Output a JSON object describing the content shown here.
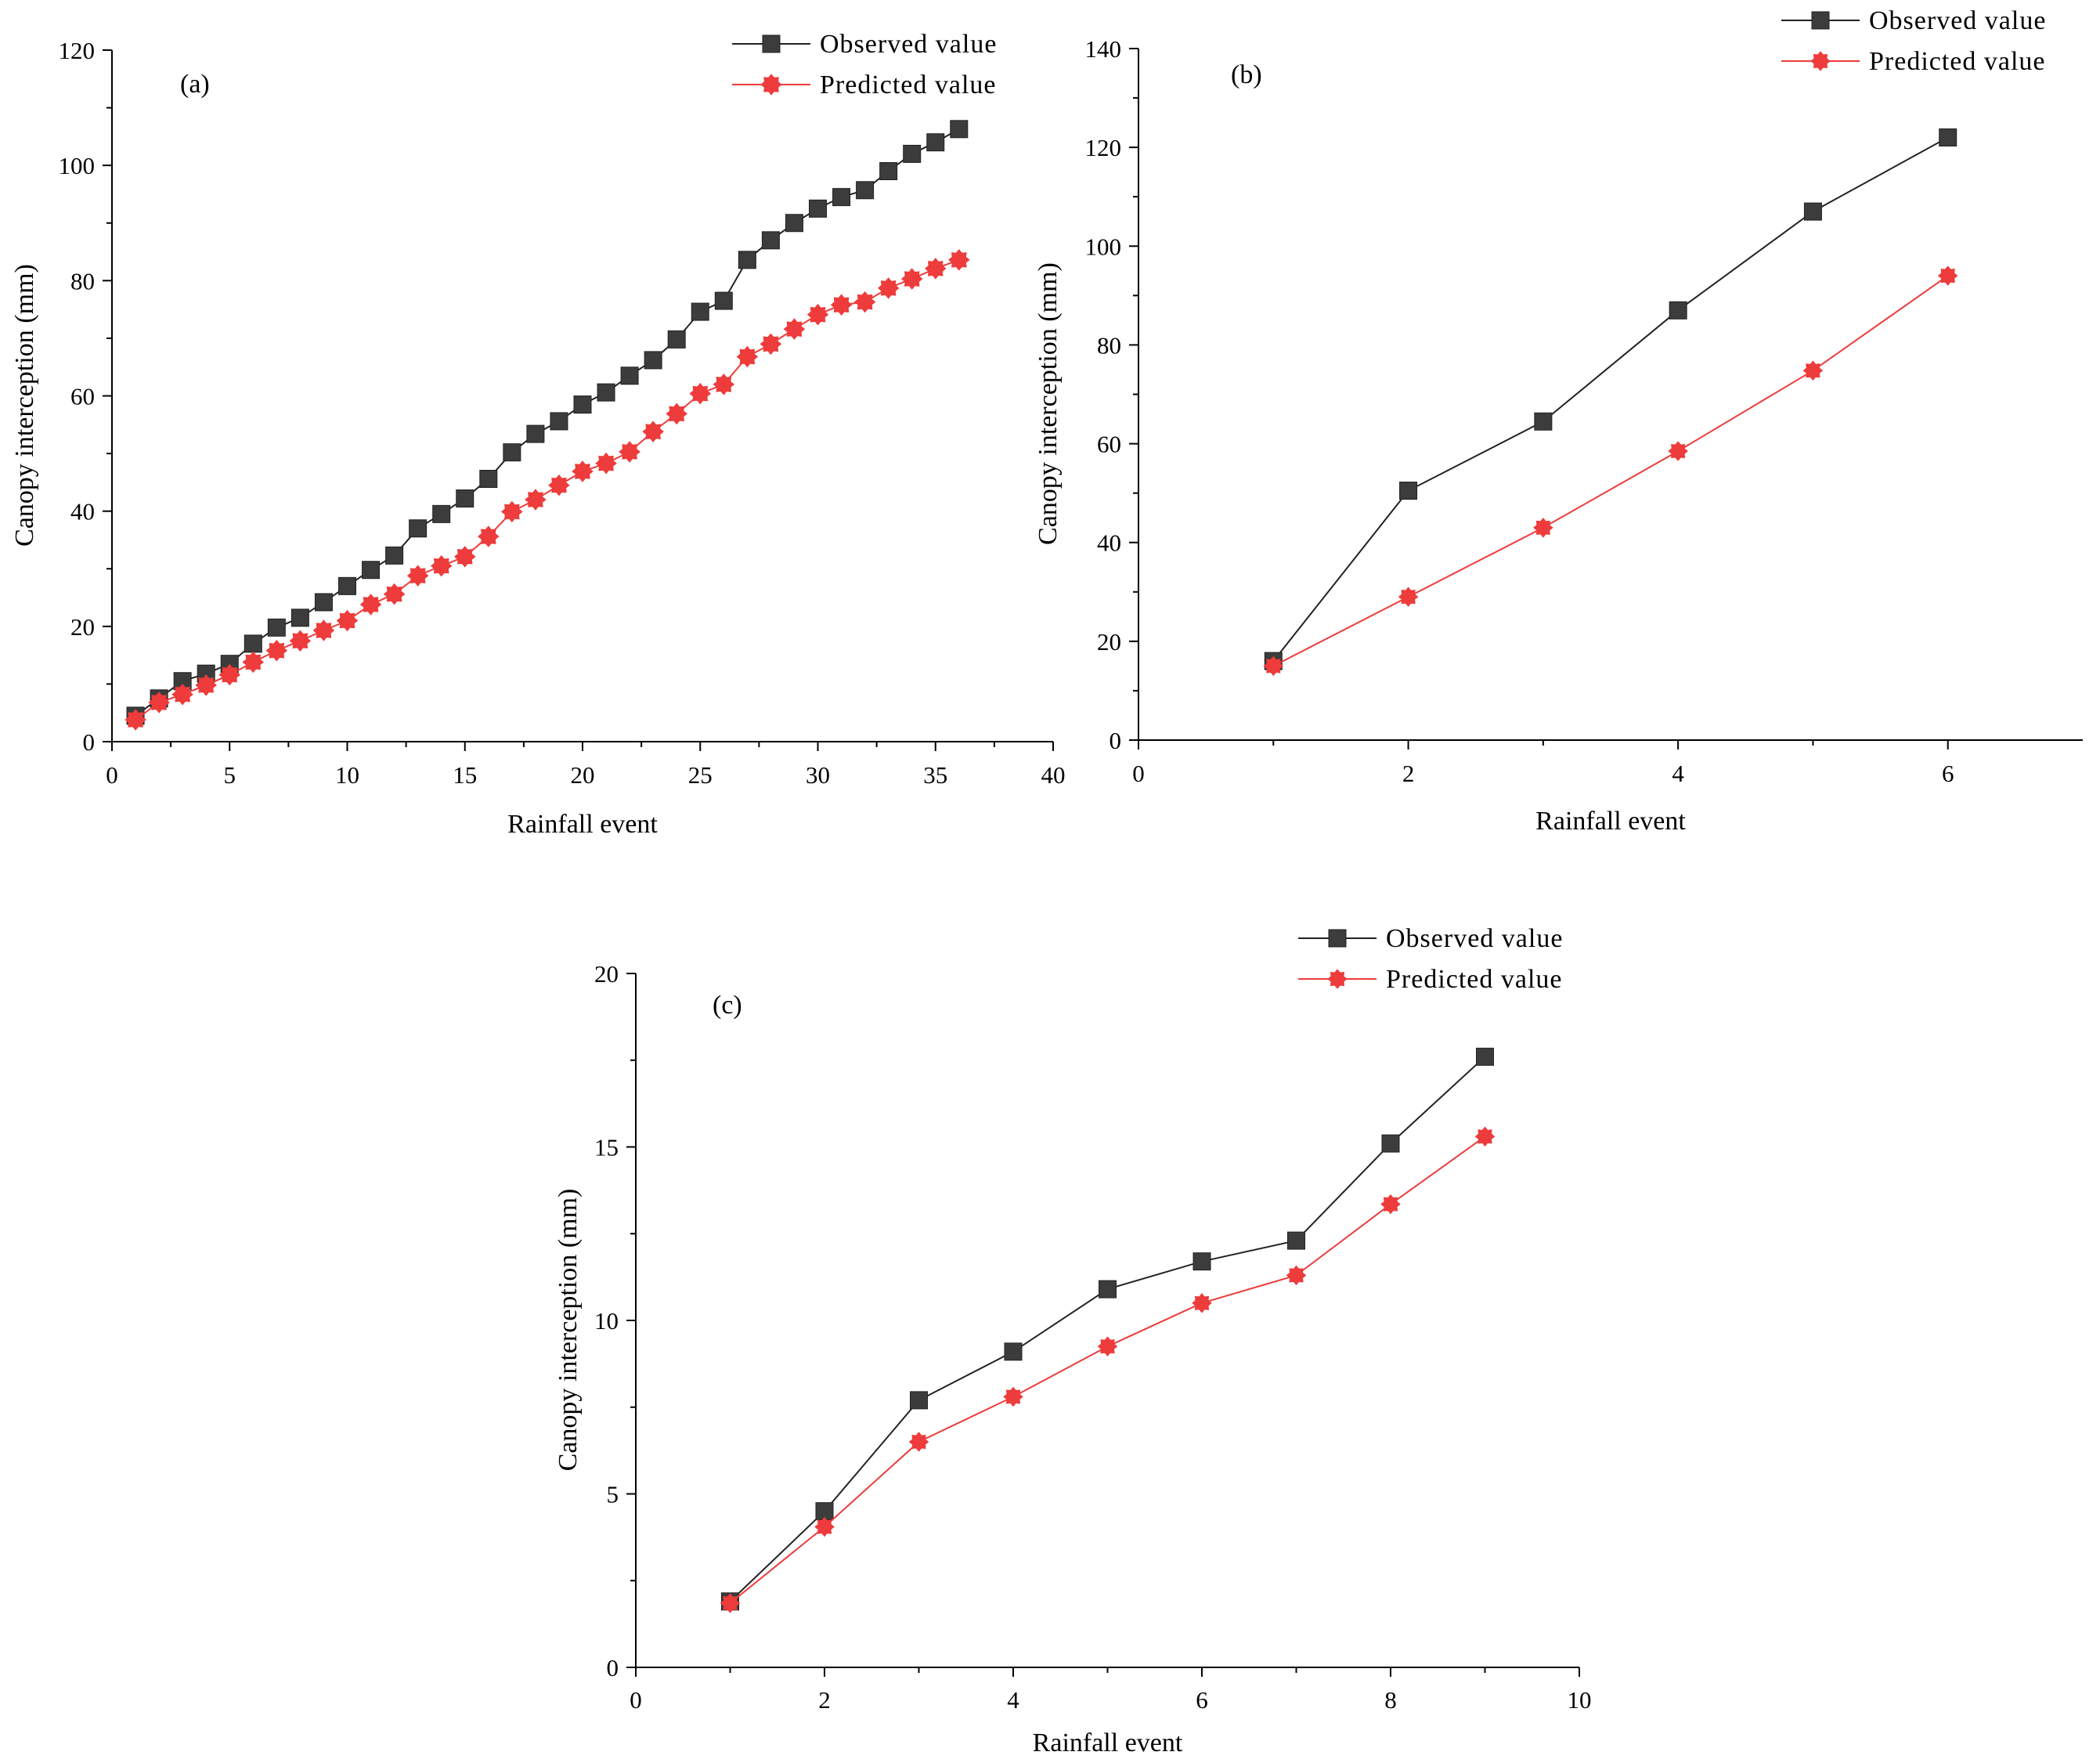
{
  "colors": {
    "observed": "#3c3c3c",
    "observed_line": "#222222",
    "predicted": "#ee3b3b",
    "axis": "#000000"
  },
  "chart_data": [
    {
      "type": "line",
      "panel_label": "(a)",
      "xlabel": "Rainfall event",
      "ylabel": "Canopy interception (mm)",
      "xlim": [
        0,
        40
      ],
      "ylim": [
        0,
        120
      ],
      "xticks": [
        0,
        5,
        10,
        15,
        20,
        25,
        30,
        35,
        40
      ],
      "yticks": [
        0,
        20,
        40,
        60,
        80,
        100,
        120
      ],
      "x": [
        1,
        2,
        3,
        4,
        5,
        6,
        7,
        8,
        9,
        10,
        11,
        12,
        13,
        14,
        15,
        16,
        17,
        18,
        19,
        20,
        21,
        22,
        23,
        24,
        25,
        26,
        27,
        28,
        29,
        30,
        31,
        32,
        33,
        34,
        35,
        36
      ],
      "series": [
        {
          "name": "Observed value",
          "marker": "square",
          "values": [
            4.5,
            7.5,
            10.5,
            11.8,
            13.5,
            17,
            19.8,
            21.5,
            24.2,
            27,
            29.8,
            32.3,
            37,
            39.5,
            42.2,
            45.6,
            50.2,
            53.4,
            55.6,
            58.5,
            60.6,
            63.5,
            66.2,
            69.8,
            74.6,
            76.5,
            83.6,
            87,
            90,
            92.5,
            94.5,
            95.7,
            99,
            102,
            104,
            106.3
          ]
        },
        {
          "name": "Predicted value",
          "marker": "star",
          "values": [
            3.8,
            6.8,
            8.2,
            9.8,
            11.6,
            13.8,
            15.8,
            17.5,
            19.3,
            21,
            23.8,
            25.6,
            28.8,
            30.5,
            32.1,
            35.6,
            39.9,
            42,
            44.5,
            46.9,
            48.3,
            50.3,
            53.8,
            56.9,
            60.4,
            62,
            66.8,
            69,
            71.6,
            74.1,
            75.8,
            76.3,
            78.7,
            80.3,
            82.1,
            83.6
          ]
        }
      ]
    },
    {
      "type": "line",
      "panel_label": "(b)",
      "xlabel": "Rainfall event",
      "ylabel": "Canopy interception (mm)",
      "xlim": [
        0,
        7
      ],
      "ylim": [
        0,
        140
      ],
      "xticks": [
        0,
        2,
        4,
        6
      ],
      "yticks": [
        0,
        20,
        40,
        60,
        80,
        100,
        120,
        140
      ],
      "x": [
        1,
        2,
        3,
        4,
        5,
        6
      ],
      "series": [
        {
          "name": "Observed value",
          "marker": "square",
          "values": [
            16,
            50.5,
            64.5,
            87,
            107,
            122
          ]
        },
        {
          "name": "Predicted value",
          "marker": "star",
          "values": [
            15,
            29,
            43,
            58.5,
            74.8,
            94
          ]
        }
      ]
    },
    {
      "type": "line",
      "panel_label": "(c)",
      "xlabel": "Rainfall event",
      "ylabel": "Canopy interception (mm)",
      "xlim": [
        0,
        10
      ],
      "ylim": [
        0,
        20
      ],
      "xticks": [
        0,
        2,
        4,
        6,
        8,
        10
      ],
      "yticks": [
        0,
        5,
        10,
        15,
        20
      ],
      "x": [
        1,
        2,
        3,
        4,
        5,
        6,
        7,
        8,
        9
      ],
      "series": [
        {
          "name": "Observed value",
          "marker": "square",
          "values": [
            1.9,
            4.5,
            7.7,
            9.1,
            10.9,
            11.7,
            12.3,
            15.1,
            17.6
          ]
        },
        {
          "name": "Predicted value",
          "marker": "star",
          "values": [
            1.85,
            4.05,
            6.5,
            7.8,
            9.25,
            10.5,
            11.3,
            13.35,
            15.3
          ]
        }
      ]
    }
  ]
}
